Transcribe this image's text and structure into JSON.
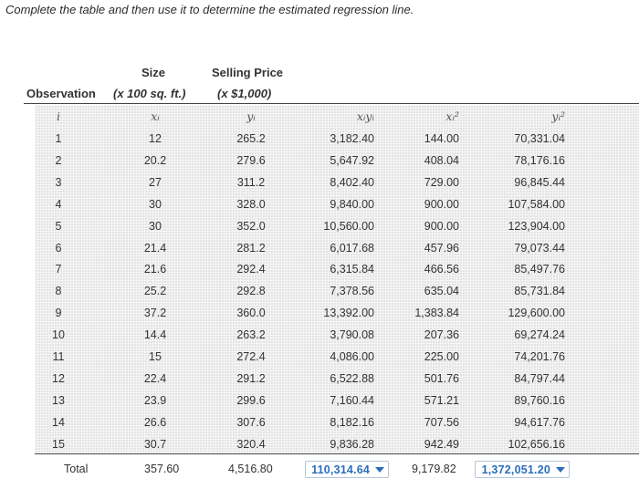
{
  "instruction": "Complete the table and then use it to determine the estimated regression line.",
  "headers": {
    "observation": "Observation",
    "size_line1": "Size",
    "size_line2": "(x 100 sq. ft.)",
    "price_line1": "Selling Price",
    "price_line2": "(x $1,000)",
    "col_i": "i",
    "col_x": "xᵢ",
    "col_y": "yᵢ",
    "col_xy": "xᵢyᵢ",
    "col_x2": "xᵢ²",
    "col_y2": "yᵢ²"
  },
  "rows": [
    {
      "i": "1",
      "x": "12",
      "y": "265.2",
      "xy": "3,182.40",
      "x2": "144.00",
      "y2": "70,331.04"
    },
    {
      "i": "2",
      "x": "20.2",
      "y": "279.6",
      "xy": "5,647.92",
      "x2": "408.04",
      "y2": "78,176.16"
    },
    {
      "i": "3",
      "x": "27",
      "y": "311.2",
      "xy": "8,402.40",
      "x2": "729.00",
      "y2": "96,845.44"
    },
    {
      "i": "4",
      "x": "30",
      "y": "328.0",
      "xy": "9,840.00",
      "x2": "900.00",
      "y2": "107,584.00"
    },
    {
      "i": "5",
      "x": "30",
      "y": "352.0",
      "xy": "10,560.00",
      "x2": "900.00",
      "y2": "123,904.00"
    },
    {
      "i": "6",
      "x": "21.4",
      "y": "281.2",
      "xy": "6,017.68",
      "x2": "457.96",
      "y2": "79,073.44"
    },
    {
      "i": "7",
      "x": "21.6",
      "y": "292.4",
      "xy": "6,315.84",
      "x2": "466.56",
      "y2": "85,497.76"
    },
    {
      "i": "8",
      "x": "25.2",
      "y": "292.8",
      "xy": "7,378.56",
      "x2": "635.04",
      "y2": "85,731.84"
    },
    {
      "i": "9",
      "x": "37.2",
      "y": "360.0",
      "xy": "13,392.00",
      "x2": "1,383.84",
      "y2": "129,600.00"
    },
    {
      "i": "10",
      "x": "14.4",
      "y": "263.2",
      "xy": "3,790.08",
      "x2": "207.36",
      "y2": "69,274.24"
    },
    {
      "i": "11",
      "x": "15",
      "y": "272.4",
      "xy": "4,086.00",
      "x2": "225.00",
      "y2": "74,201.76"
    },
    {
      "i": "12",
      "x": "22.4",
      "y": "291.2",
      "xy": "6,522.88",
      "x2": "501.76",
      "y2": "84,797.44"
    },
    {
      "i": "13",
      "x": "23.9",
      "y": "299.6",
      "xy": "7,160.44",
      "x2": "571.21",
      "y2": "89,760.16"
    },
    {
      "i": "14",
      "x": "26.6",
      "y": "307.6",
      "xy": "8,182.16",
      "x2": "707.56",
      "y2": "94,617.76"
    },
    {
      "i": "15",
      "x": "30.7",
      "y": "320.4",
      "xy": "9,836.28",
      "x2": "942.49",
      "y2": "102,656.16"
    }
  ],
  "totals": {
    "label": "Total",
    "x": "357.60",
    "y": "4,516.80",
    "xy": "110,314.64",
    "x2": "9,179.82",
    "y2": "1,372,051.20"
  },
  "colors": {
    "grid_bg": "#e4e4e4",
    "dropdown_text": "#2a6ebb",
    "dropdown_border": "#b8c6d8"
  },
  "icons": {
    "dropdown": "caret-down-icon"
  }
}
